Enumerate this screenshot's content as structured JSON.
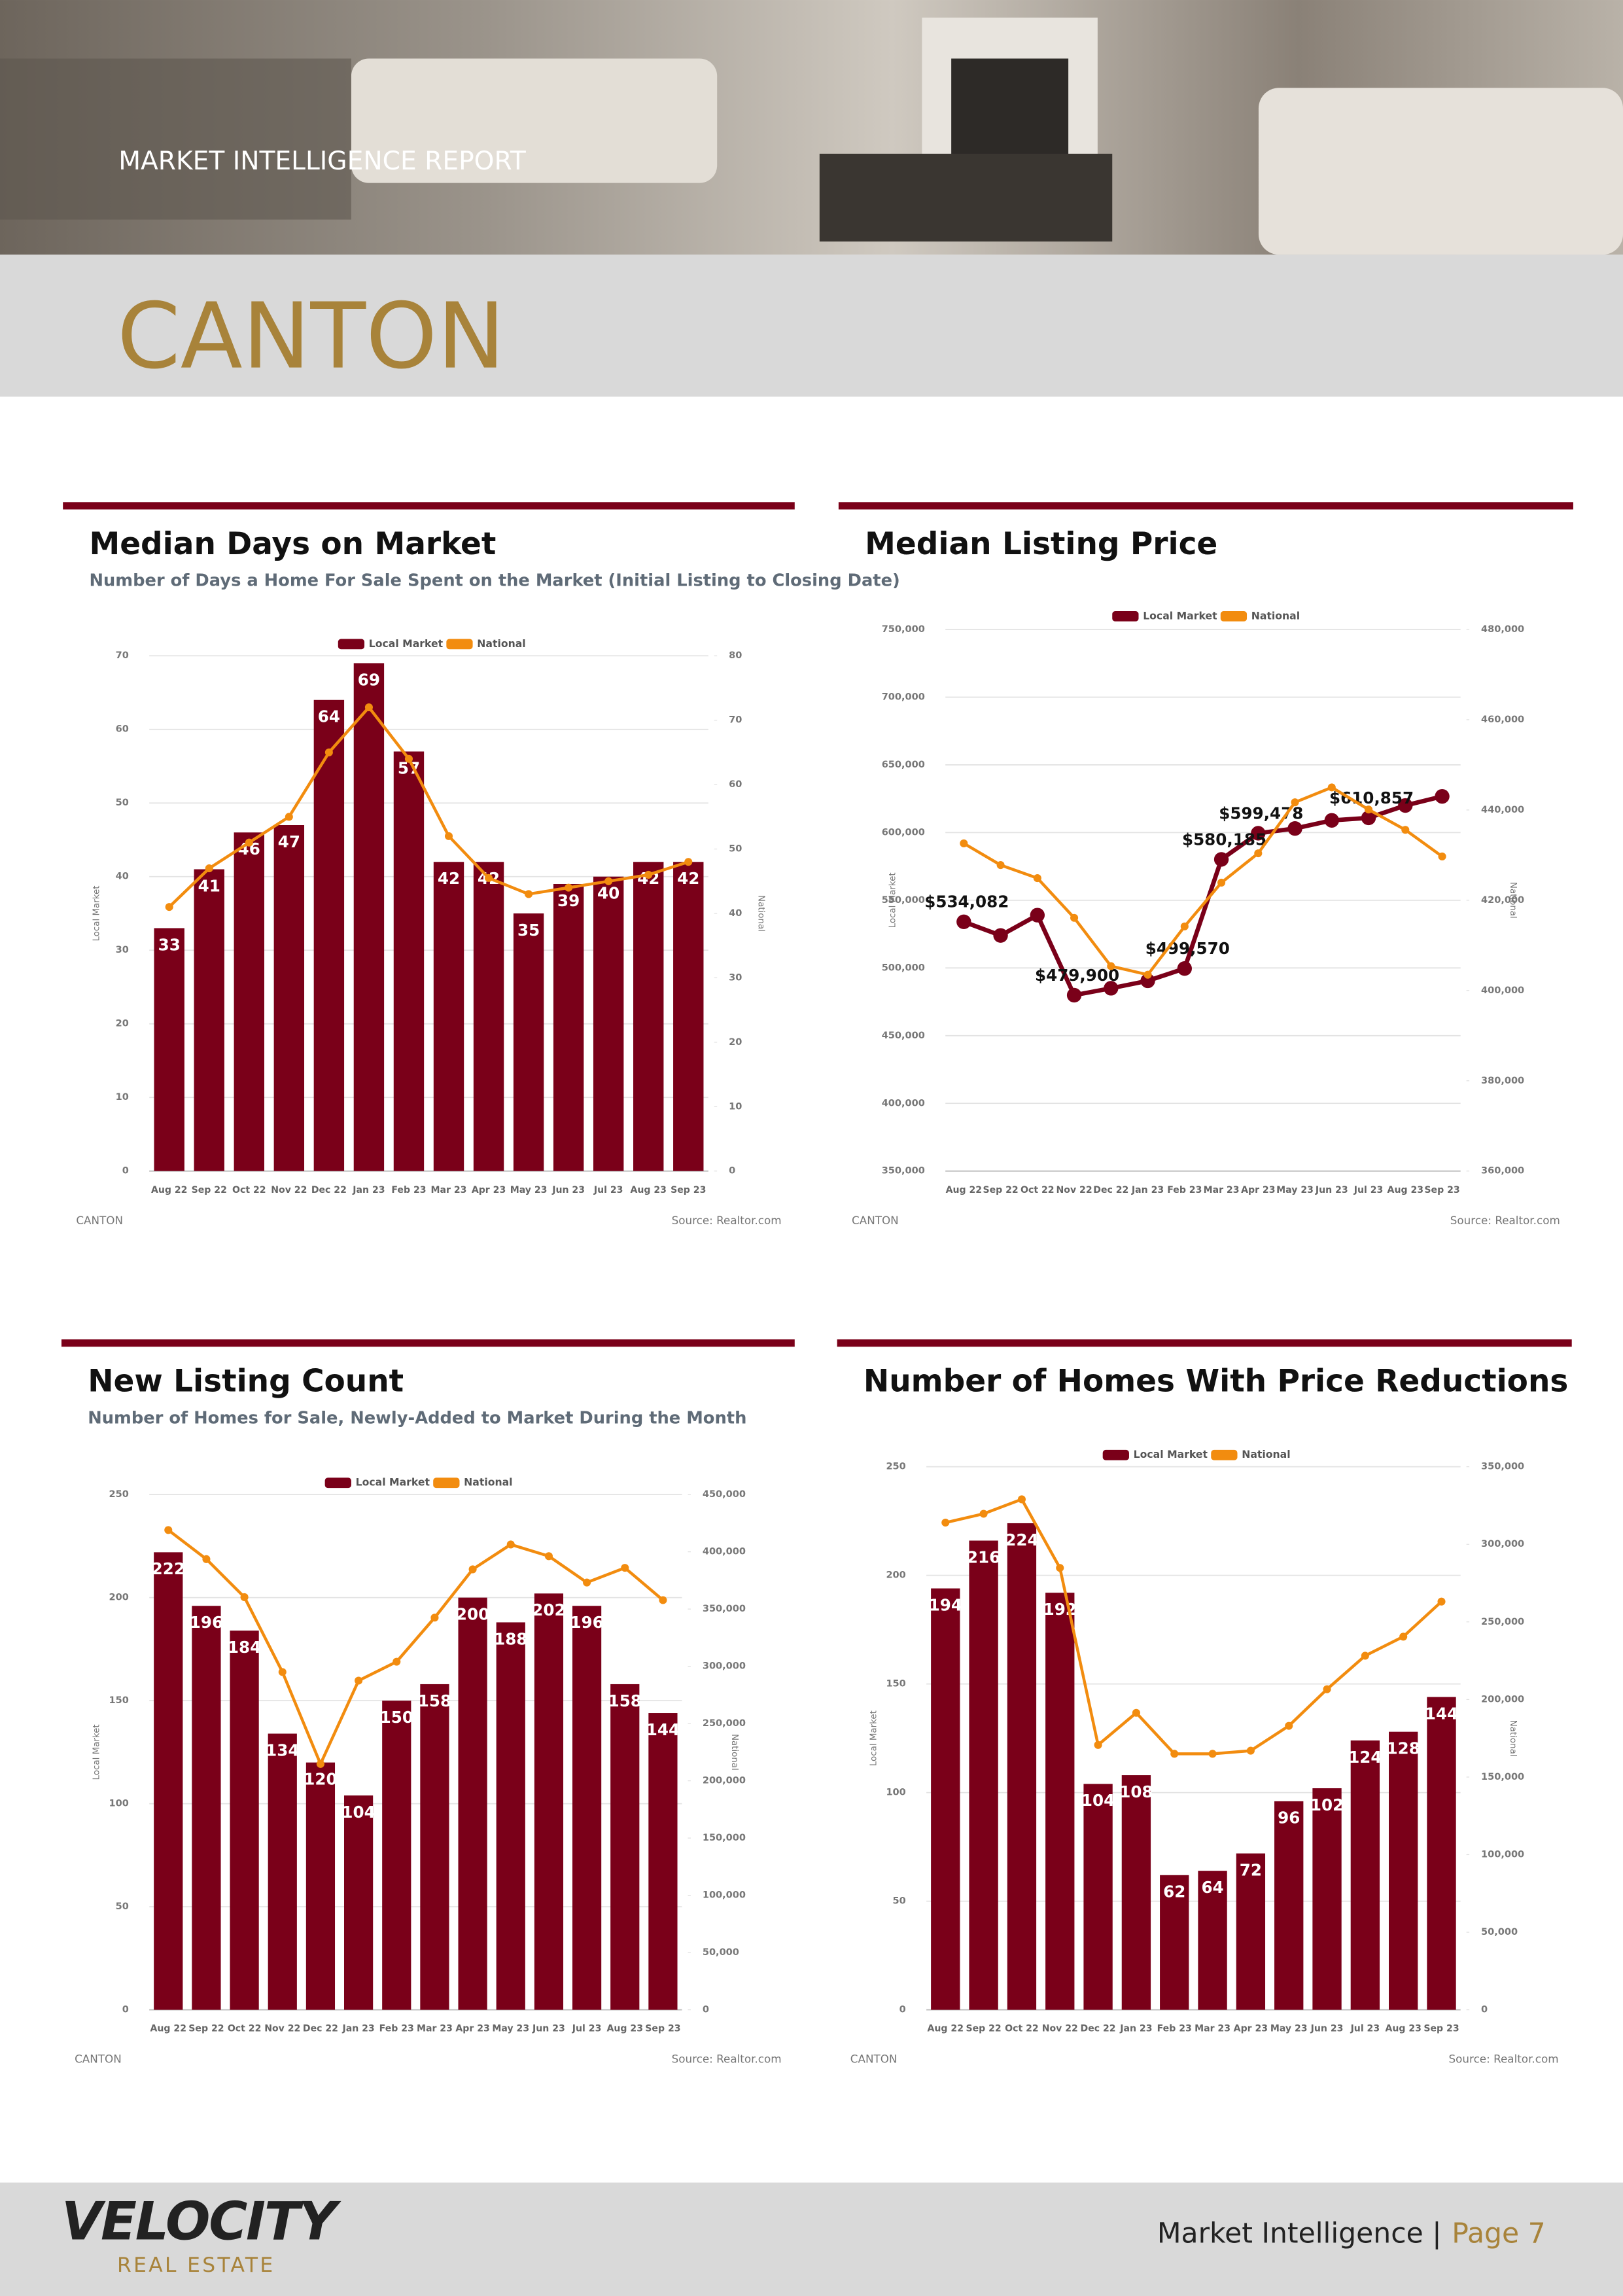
{
  "header": {
    "report": "MARKET INTELLIGENCE REPORT",
    "city": "CANTON"
  },
  "footer": {
    "brand": "VELOCITY",
    "brand_sub": "REAL ESTATE",
    "label": "Market Intelligence |",
    "page": "Page 7"
  },
  "chart_data": [
    {
      "type": "bar",
      "title": "Median Days on Market",
      "subtitle": "Number of Days a Home For Sale Spent on the Market (Initial Listing to Closing Date)",
      "categories": [
        "Aug 22",
        "Sep 22",
        "Oct 22",
        "Nov 22",
        "Dec 22",
        "Jan 23",
        "Feb 23",
        "Mar 23",
        "Apr 23",
        "May 23",
        "Jun 23",
        "Jul 23",
        "Aug 23",
        "Sep 23"
      ],
      "series": [
        {
          "name": "Local Market",
          "color": "#7a0019",
          "type": "bar",
          "values": [
            33,
            41,
            46,
            47,
            64,
            69,
            57,
            42,
            42,
            35,
            39,
            40,
            42,
            42
          ]
        },
        {
          "name": "National",
          "color": "#f28c0f",
          "type": "line",
          "axis": "y2",
          "values": [
            41,
            47,
            51,
            55,
            65,
            72,
            64,
            52,
            45.5,
            43,
            44,
            45,
            46,
            48
          ]
        }
      ],
      "ylim": [
        0,
        70
      ],
      "yticks": [
        0,
        10,
        20,
        30,
        40,
        50,
        60,
        70
      ],
      "y2lim": [
        0,
        80
      ],
      "y2ticks": [
        0,
        10,
        20,
        30,
        40,
        50,
        60,
        70,
        80
      ],
      "ylabel": "Local Market",
      "y2label": "National",
      "legend": "top",
      "grid": true,
      "footnote": "CANTON",
      "source": "Source: Realtor.com"
    },
    {
      "type": "line",
      "title": "Median Listing Price",
      "categories": [
        "Aug 22",
        "Sep 22",
        "Oct 22",
        "Nov 22",
        "Dec 22",
        "Jan 23",
        "Feb 23",
        "Mar 23",
        "Apr 23",
        "May 23",
        "Jun 23",
        "Jul 23",
        "Aug 23",
        "Sep 23"
      ],
      "series": [
        {
          "name": "Local Market",
          "color": "#7a0019",
          "values": [
            534082,
            524000,
            539000,
            479900,
            485000,
            490500,
            499570,
            580185,
            599478,
            603000,
            609000,
            610857,
            620000,
            626700
          ],
          "value_labels": [
            "$534,082",
            null,
            null,
            "$479,900",
            null,
            null,
            "$499,570",
            "$580,185",
            "$599,478",
            null,
            null,
            "$610,857",
            null,
            null
          ]
        },
        {
          "name": "National",
          "color": "#f28c0f",
          "axis": "y2",
          "values": [
            432600,
            427800,
            424900,
            416100,
            405400,
            403500,
            414200,
            423900,
            430400,
            441700,
            445000,
            440100,
            435600,
            429700
          ]
        }
      ],
      "ylim": [
        350000,
        750000
      ],
      "yticks": [
        {
          "value": 350000,
          "label": "350,000"
        },
        {
          "value": 400000,
          "label": "400,000"
        },
        {
          "value": 450000,
          "label": "450,000"
        },
        {
          "value": 500000,
          "label": "500,000"
        },
        {
          "value": 550000,
          "label": "550,000"
        },
        {
          "value": 600000,
          "label": "600,000"
        },
        {
          "value": 650000,
          "label": "650,000"
        },
        {
          "value": 700000,
          "label": "700,000"
        },
        {
          "value": 750000,
          "label": "750,000"
        }
      ],
      "y2lim": [
        360000,
        480000
      ],
      "y2ticks": [
        {
          "value": 360000,
          "label": "360,000"
        },
        {
          "value": 380000,
          "label": "380,000"
        },
        {
          "value": 400000,
          "label": "400,000"
        },
        {
          "value": 420000,
          "label": "420,000"
        },
        {
          "value": 440000,
          "label": "440,000"
        },
        {
          "value": 460000,
          "label": "460,000"
        },
        {
          "value": 480000,
          "label": "480,000"
        }
      ],
      "ylabel": "Local Market",
      "y2label": "National",
      "legend": "top",
      "grid": true,
      "footnote": "CANTON",
      "source": "Source: Realtor.com"
    },
    {
      "type": "bar",
      "title": "New Listing Count",
      "subtitle": "Number of Homes for Sale, Newly-Added to Market During the Month",
      "categories": [
        "Aug 22",
        "Sep 22",
        "Oct 22",
        "Nov 22",
        "Dec 22",
        "Jan 23",
        "Feb 23",
        "Mar 23",
        "Apr 23",
        "May 23",
        "Jun 23",
        "Jul 23",
        "Aug 23",
        "Sep 23"
      ],
      "series": [
        {
          "name": "Local Market",
          "color": "#7a0019",
          "type": "bar",
          "values": [
            222,
            196,
            184,
            134,
            120,
            104,
            150,
            158,
            200,
            188,
            202,
            196,
            158,
            144
          ]
        },
        {
          "name": "National",
          "color": "#f28c0f",
          "type": "line",
          "axis": "y2",
          "values": [
            419000,
            393600,
            360400,
            295000,
            214700,
            287500,
            304000,
            342500,
            384700,
            406400,
            396200,
            373200,
            386000,
            357800
          ]
        }
      ],
      "ylim": [
        0,
        250
      ],
      "yticks": [
        0,
        50,
        100,
        150,
        200,
        250
      ],
      "y2lim": [
        0,
        450000
      ],
      "y2ticks": [
        0,
        {
          "value": 50000,
          "label": "50,000"
        },
        {
          "value": 100000,
          "label": "100,000"
        },
        {
          "value": 150000,
          "label": "150,000"
        },
        {
          "value": 200000,
          "label": "200,000"
        },
        {
          "value": 250000,
          "label": "250,000"
        },
        {
          "value": 300000,
          "label": "300,000"
        },
        {
          "value": 350000,
          "label": "350,000"
        },
        {
          "value": 400000,
          "label": "400,000"
        },
        {
          "value": 450000,
          "label": "450,000"
        }
      ],
      "ylabel": "Local Market",
      "y2label": "National",
      "legend": "top",
      "grid": true,
      "footnote": "CANTON",
      "source": "Source: Realtor.com"
    },
    {
      "type": "bar",
      "title": "Number of Homes With Price Reductions",
      "categories": [
        "Aug 22",
        "Sep 22",
        "Oct 22",
        "Nov 22",
        "Dec 22",
        "Jan 23",
        "Feb 23",
        "Mar 23",
        "Apr 23",
        "May 23",
        "Jun 23",
        "Jul 23",
        "Aug 23",
        "Sep 23"
      ],
      "series": [
        {
          "name": "Local Market",
          "color": "#7a0019",
          "type": "bar",
          "values": [
            194,
            216,
            224,
            192,
            104,
            108,
            62,
            64,
            72,
            96,
            102,
            124,
            128,
            144
          ]
        },
        {
          "name": "National",
          "color": "#f28c0f",
          "type": "line",
          "axis": "y2",
          "values": [
            314000,
            319700,
            329000,
            284800,
            170700,
            191400,
            165000,
            165000,
            167000,
            183000,
            206600,
            228200,
            240500,
            263100
          ]
        }
      ],
      "ylim": [
        0,
        250
      ],
      "yticks": [
        0,
        50,
        100,
        150,
        200,
        250
      ],
      "y2lim": [
        0,
        350000
      ],
      "y2ticks": [
        0,
        {
          "value": 50000,
          "label": "50,000"
        },
        {
          "value": 100000,
          "label": "100,000"
        },
        {
          "value": 150000,
          "label": "150,000"
        },
        {
          "value": 200000,
          "label": "200,000"
        },
        {
          "value": 250000,
          "label": "250,000"
        },
        {
          "value": 300000,
          "label": "300,000"
        },
        {
          "value": 350000,
          "label": "350,000"
        }
      ],
      "ylabel": "Local Market",
      "y2label": "National",
      "legend": "top",
      "grid": true,
      "footnote": "CANTON",
      "source": "Source: Realtor.com"
    }
  ]
}
